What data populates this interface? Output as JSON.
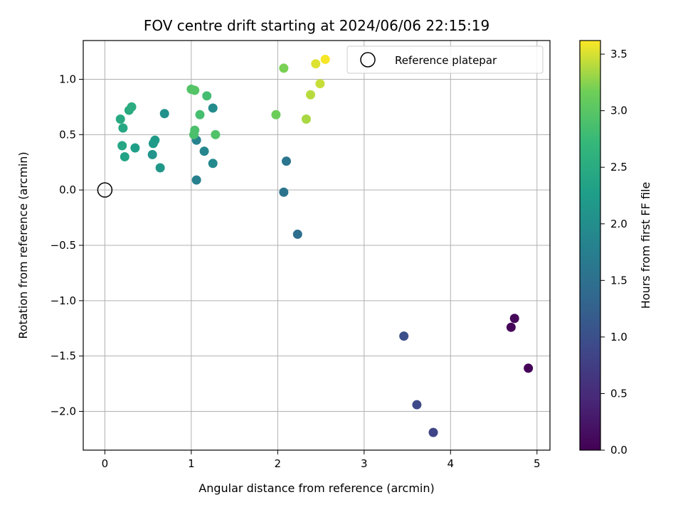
{
  "chart_data": {
    "type": "scatter",
    "title": "FOV centre drift starting at 2024/06/06 22:15:19",
    "xlabel": "Angular distance from reference (arcmin)",
    "ylabel": "Rotation from reference (arcmin)",
    "xlim": [
      -0.25,
      5.15
    ],
    "ylim": [
      -2.35,
      1.35
    ],
    "xticks": [
      0,
      1,
      2,
      3,
      4,
      5
    ],
    "xtick_labels": [
      "0",
      "1",
      "2",
      "3",
      "4",
      "5"
    ],
    "yticks": [
      -2.0,
      -1.5,
      -1.0,
      -0.5,
      0.0,
      0.5,
      1.0
    ],
    "ytick_labels": [
      "−2.0",
      "−1.5",
      "−1.0",
      "−0.5",
      "0.0",
      "0.5",
      "1.0"
    ],
    "grid": true,
    "legend": {
      "placement": "top-right",
      "entries": [
        "Reference platepar"
      ]
    },
    "reference_point": {
      "x": 0.0,
      "y": 0.0,
      "label": "Reference platepar"
    },
    "colorbar": {
      "label": "Hours from first FF file",
      "colormap": "viridis",
      "range": [
        0.0,
        3.62
      ],
      "ticks": [
        0.0,
        0.5,
        1.0,
        1.5,
        2.0,
        2.5,
        3.0,
        3.5
      ],
      "tick_labels": [
        "0.0",
        "0.5",
        "1.0",
        "1.5",
        "2.0",
        "2.5",
        "3.0",
        "3.5"
      ]
    },
    "points": [
      {
        "x": 4.9,
        "y": -1.61,
        "c": 0.02
      },
      {
        "x": 4.7,
        "y": -1.24,
        "c": 0.06
      },
      {
        "x": 4.74,
        "y": -1.16,
        "c": 0.08
      },
      {
        "x": 3.8,
        "y": -2.19,
        "c": 0.85
      },
      {
        "x": 3.61,
        "y": -1.94,
        "c": 0.92
      },
      {
        "x": 3.46,
        "y": -1.32,
        "c": 1.0
      },
      {
        "x": 2.23,
        "y": -0.4,
        "c": 1.47
      },
      {
        "x": 2.07,
        "y": -0.02,
        "c": 1.55
      },
      {
        "x": 2.1,
        "y": 0.26,
        "c": 1.58
      },
      {
        "x": 1.06,
        "y": 0.09,
        "c": 1.78
      },
      {
        "x": 1.06,
        "y": 0.45,
        "c": 1.83
      },
      {
        "x": 1.15,
        "y": 0.35,
        "c": 1.88
      },
      {
        "x": 1.25,
        "y": 0.24,
        "c": 1.92
      },
      {
        "x": 1.25,
        "y": 0.74,
        "c": 1.96
      },
      {
        "x": 0.69,
        "y": 0.69,
        "c": 2.05
      },
      {
        "x": 0.55,
        "y": 0.32,
        "c": 2.1
      },
      {
        "x": 0.64,
        "y": 0.2,
        "c": 2.15
      },
      {
        "x": 0.56,
        "y": 0.42,
        "c": 2.18
      },
      {
        "x": 0.58,
        "y": 0.45,
        "c": 2.22
      },
      {
        "x": 0.35,
        "y": 0.38,
        "c": 2.28
      },
      {
        "x": 0.23,
        "y": 0.3,
        "c": 2.35
      },
      {
        "x": 0.2,
        "y": 0.4,
        "c": 2.4
      },
      {
        "x": 0.21,
        "y": 0.56,
        "c": 2.43
      },
      {
        "x": 0.18,
        "y": 0.64,
        "c": 2.46
      },
      {
        "x": 0.28,
        "y": 0.72,
        "c": 2.48
      },
      {
        "x": 0.31,
        "y": 0.75,
        "c": 2.52
      },
      {
        "x": 1.1,
        "y": 0.68,
        "c": 2.85
      },
      {
        "x": 1.03,
        "y": 0.5,
        "c": 2.88
      },
      {
        "x": 1.04,
        "y": 0.54,
        "c": 2.9
      },
      {
        "x": 1.28,
        "y": 0.5,
        "c": 2.93
      },
      {
        "x": 1.18,
        "y": 0.85,
        "c": 2.83
      },
      {
        "x": 1.0,
        "y": 0.91,
        "c": 2.95
      },
      {
        "x": 1.04,
        "y": 0.9,
        "c": 2.97
      },
      {
        "x": 1.98,
        "y": 0.68,
        "c": 3.15
      },
      {
        "x": 2.07,
        "y": 1.1,
        "c": 3.2
      },
      {
        "x": 2.33,
        "y": 0.64,
        "c": 3.35
      },
      {
        "x": 2.38,
        "y": 0.86,
        "c": 3.4
      },
      {
        "x": 2.49,
        "y": 0.96,
        "c": 3.45
      },
      {
        "x": 2.44,
        "y": 1.14,
        "c": 3.52
      },
      {
        "x": 2.55,
        "y": 1.18,
        "c": 3.6
      }
    ]
  }
}
